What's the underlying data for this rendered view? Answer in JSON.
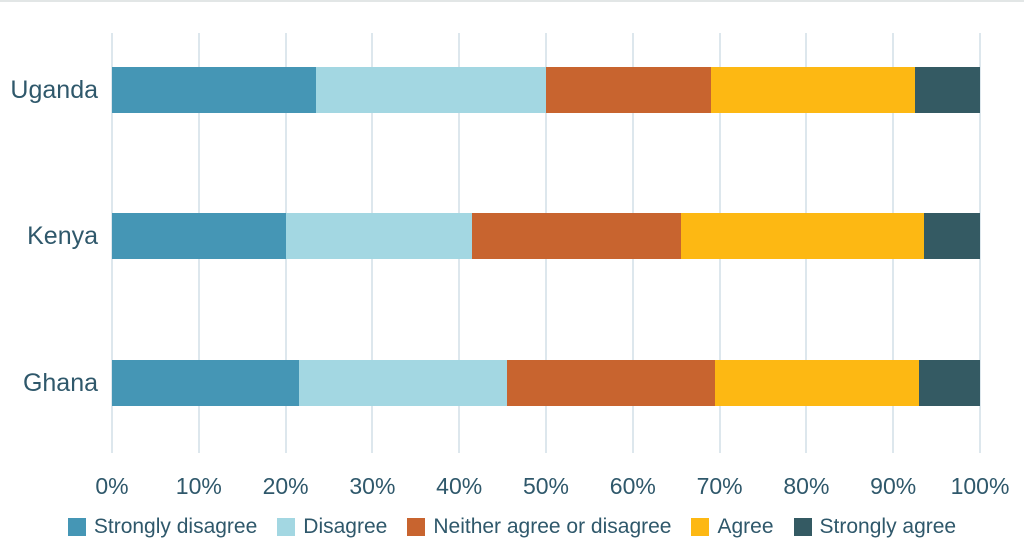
{
  "chart_data": {
    "type": "bar",
    "orientation": "horizontal",
    "stacked": true,
    "title": "",
    "categories": [
      "Uganda",
      "Kenya",
      "Ghana"
    ],
    "series": [
      {
        "name": "Strongly disagree",
        "color": "#4596B5",
        "values": [
          23.5,
          20,
          21.5
        ]
      },
      {
        "name": "Disagree",
        "color": "#A3D7E2",
        "values": [
          26.5,
          21.5,
          24
        ]
      },
      {
        "name": "Neither agree or disagree",
        "color": "#C8642F",
        "values": [
          19,
          24,
          24
        ]
      },
      {
        "name": "Agree",
        "color": "#FDB813",
        "values": [
          23.5,
          28,
          23.5
        ]
      },
      {
        "name": "Strongly agree",
        "color": "#345A63",
        "values": [
          7.5,
          6.5,
          7
        ]
      }
    ],
    "x_ticks": [
      "0%",
      "10%",
      "20%",
      "30%",
      "40%",
      "50%",
      "60%",
      "70%",
      "80%",
      "90%",
      "100%"
    ],
    "xlim": [
      0,
      100
    ],
    "value_unit": "percent",
    "grid": "vertical",
    "legend_position": "bottom",
    "palette": {
      "text_color": "#2F586B",
      "gridline_color": "#DDE7ED",
      "background": "#FFFFFF",
      "top_border": "#E2E6E6"
    }
  }
}
